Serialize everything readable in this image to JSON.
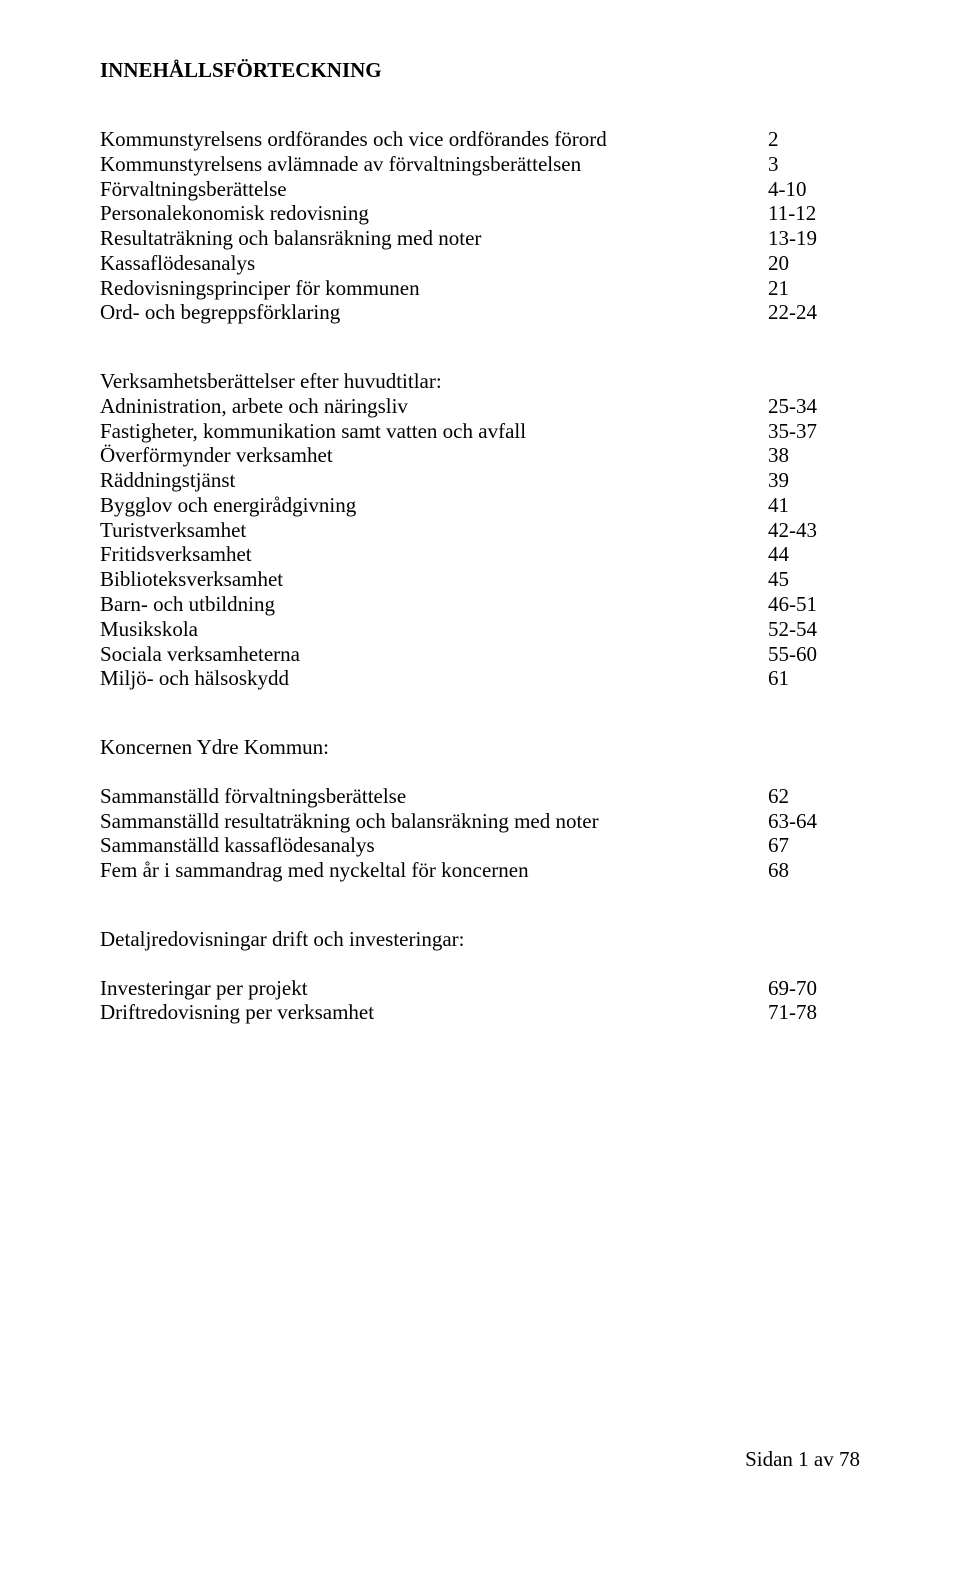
{
  "title": "INNEHÅLLSFÖRTECKNING",
  "section1": [
    {
      "label": "Kommunstyrelsens ordförandes och vice ordförandes förord",
      "page": "2"
    },
    {
      "label": "Kommunstyrelsens avlämnade av förvaltningsberättelsen",
      "page": "3"
    },
    {
      "label": "Förvaltningsberättelse",
      "page": "4-10"
    },
    {
      "label": "Personalekonomisk redovisning",
      "page": "11-12"
    },
    {
      "label": "Resultaträkning och balansräkning med noter",
      "page": "13-19"
    },
    {
      "label": "Kassaflödesanalys",
      "page": "20"
    },
    {
      "label": "Redovisningsprinciper för kommunen",
      "page": "21"
    },
    {
      "label": "Ord- och begreppsförklaring",
      "page": "22-24"
    }
  ],
  "section2_header": "Verksamhetsberättelser efter huvudtitlar:",
  "section2": [
    {
      "label": "Adninistration, arbete och näringsliv",
      "page": "25-34"
    },
    {
      "label": "Fastigheter, kommunikation samt vatten och avfall",
      "page": "35-37"
    },
    {
      "label": "Överförmynder verksamhet",
      "page": "38"
    },
    {
      "label": "Räddningstjänst",
      "page": "39"
    },
    {
      "label": "Bygglov och energirådgivning",
      "page": "41"
    },
    {
      "label": "Turistverksamhet",
      "page": "42-43"
    },
    {
      "label": "Fritidsverksamhet",
      "page": "44"
    },
    {
      "label": "Biblioteksverksamhet",
      "page": "45"
    },
    {
      "label": "Barn- och utbildning",
      "page": "46-51"
    },
    {
      "label": "Musikskola",
      "page": "52-54"
    },
    {
      "label": "Sociala verksamheterna",
      "page": "55-60"
    },
    {
      "label": "Miljö- och hälsoskydd",
      "page": "61"
    }
  ],
  "section3_header": "Koncernen Ydre Kommun:",
  "section3": [
    {
      "label": "Sammanställd förvaltningsberättelse",
      "page": "62"
    },
    {
      "label": "Sammanställd resultaträkning och balansräkning med noter",
      "page": "63-64"
    },
    {
      "label": "Sammanställd kassaflödesanalys",
      "page": "67"
    },
    {
      "label": "Fem år i sammandrag med nyckeltal för koncernen",
      "page": "68"
    }
  ],
  "section4_header": "Detaljredovisningar drift och investeringar:",
  "section4": [
    {
      "label": "Investeringar per projekt",
      "page": "69-70"
    },
    {
      "label": "Driftredovisning per verksamhet",
      "page": "71-78"
    }
  ],
  "footer": "Sidan 1 av 78"
}
